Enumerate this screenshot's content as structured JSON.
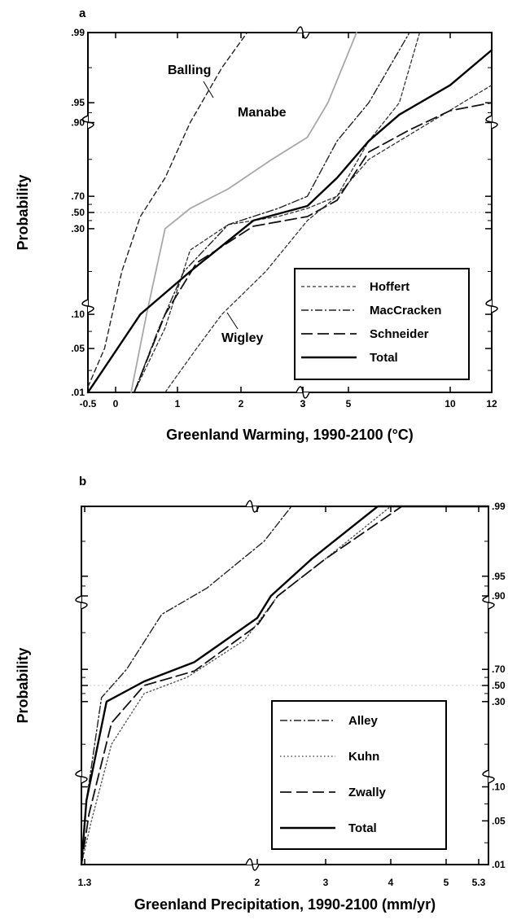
{
  "chart_data": [
    {
      "panel": "a",
      "type": "line",
      "title": "",
      "xlabel": "Greenland Warming, 1990-2100 (°C)",
      "ylabel": "Probability",
      "x_ticks": [
        "-0.5",
        "0",
        "1",
        "2",
        "3",
        "3",
        "5",
        "10",
        "12"
      ],
      "y_ticks": [
        ".01",
        ".05",
        ".10",
        ".30",
        ".50",
        ".70",
        ".90",
        ".95",
        ".99"
      ],
      "legend": {
        "placement": "bottom-right",
        "entries": [
          "Hoffert",
          "MacCracken",
          "Schneider",
          "Total"
        ]
      },
      "annotations": [
        "Balling",
        "Manabe",
        "Wigley"
      ],
      "series": [
        {
          "name": "Balling",
          "style": "dashed",
          "points": [
            [
              -0.5,
              0.015
            ],
            [
              -0.2,
              0.05
            ],
            [
              0.1,
              0.2
            ],
            [
              0.4,
              0.45
            ],
            [
              0.8,
              0.75
            ],
            [
              1.2,
              0.9
            ],
            [
              1.7,
              0.97
            ],
            [
              2.1,
              0.99
            ]
          ]
        },
        {
          "name": "Manabe",
          "style": "gray-solid",
          "points": [
            [
              0.25,
              0.01
            ],
            [
              0.5,
              0.1
            ],
            [
              0.8,
              0.3
            ],
            [
              1.2,
              0.55
            ],
            [
              1.8,
              0.72
            ],
            [
              2.5,
              0.8
            ],
            [
              3.2,
              0.86
            ],
            [
              4.1,
              0.95
            ],
            [
              5.4,
              0.99
            ]
          ]
        },
        {
          "name": "Hoffert",
          "style": "short-dashed",
          "points": [
            [
              0.3,
              0.01
            ],
            [
              0.8,
              0.08
            ],
            [
              1.2,
              0.25
            ],
            [
              1.8,
              0.35
            ],
            [
              2.6,
              0.45
            ],
            [
              3.2,
              0.55
            ],
            [
              4.5,
              0.7
            ],
            [
              6,
              0.8
            ],
            [
              9,
              0.9
            ],
            [
              12,
              0.96
            ]
          ]
        },
        {
          "name": "MacCracken",
          "style": "dash-dot",
          "points": [
            [
              0.3,
              0.01
            ],
            [
              0.7,
              0.08
            ],
            [
              1.1,
              0.2
            ],
            [
              1.8,
              0.35
            ],
            [
              2.6,
              0.55
            ],
            [
              3.2,
              0.7
            ],
            [
              4.5,
              0.85
            ],
            [
              6,
              0.95
            ],
            [
              8,
              0.99
            ]
          ]
        },
        {
          "name": "Schneider",
          "style": "long-dashed",
          "points": [
            [
              0.3,
              0.01
            ],
            [
              0.8,
              0.1
            ],
            [
              1.3,
              0.22
            ],
            [
              2.2,
              0.33
            ],
            [
              3.2,
              0.45
            ],
            [
              4.5,
              0.65
            ],
            [
              6,
              0.82
            ],
            [
              8,
              0.88
            ],
            [
              10,
              0.93
            ],
            [
              12,
              0.95
            ]
          ]
        },
        {
          "name": "Wigley",
          "style": "short-dashed",
          "points": [
            [
              0.8,
              0.01
            ],
            [
              1.3,
              0.05
            ],
            [
              1.7,
              0.1
            ],
            [
              2.4,
              0.2
            ],
            [
              3.2,
              0.4
            ],
            [
              4.5,
              0.7
            ],
            [
              6,
              0.85
            ],
            [
              7.5,
              0.95
            ],
            [
              8.5,
              0.99
            ]
          ]
        },
        {
          "name": "Total",
          "style": "solid-bold",
          "points": [
            [
              -0.5,
              0.01
            ],
            [
              -0.1,
              0.04
            ],
            [
              0.4,
              0.1
            ],
            [
              1.2,
              0.2
            ],
            [
              2.2,
              0.4
            ],
            [
              3.2,
              0.58
            ],
            [
              4.5,
              0.75
            ],
            [
              6,
              0.85
            ],
            [
              7.5,
              0.92
            ],
            [
              10,
              0.96
            ],
            [
              12,
              0.98
            ]
          ]
        }
      ]
    },
    {
      "panel": "b",
      "type": "line",
      "title": "",
      "xlabel": "Greenland Precipitation, 1990-2100 (mm/yr)",
      "ylabel": "Probability",
      "x_ticks": [
        "1.3",
        "2",
        "3",
        "4",
        "5",
        "5.3"
      ],
      "y_ticks": [
        ".01",
        ".05",
        ".10",
        ".30",
        ".50",
        ".70",
        ".90",
        ".95",
        ".99"
      ],
      "legend": {
        "placement": "bottom-right",
        "entries": [
          "Alley",
          "Kuhn",
          "Zwally",
          "Total"
        ]
      },
      "series": [
        {
          "name": "Alley",
          "style": "dash-dot",
          "points": [
            [
              1.3,
              0.01
            ],
            [
              1.32,
              0.08
            ],
            [
              1.38,
              0.35
            ],
            [
              1.48,
              0.7
            ],
            [
              1.62,
              0.85
            ],
            [
              1.8,
              0.92
            ],
            [
              2.1,
              0.97
            ],
            [
              2.5,
              0.99
            ]
          ]
        },
        {
          "name": "Kuhn",
          "style": "dotted",
          "points": [
            [
              1.3,
              0.01
            ],
            [
              1.34,
              0.05
            ],
            [
              1.42,
              0.2
            ],
            [
              1.55,
              0.4
            ],
            [
              1.72,
              0.6
            ],
            [
              1.95,
              0.78
            ],
            [
              2.3,
              0.9
            ],
            [
              3,
              0.96
            ],
            [
              4,
              0.99
            ]
          ]
        },
        {
          "name": "Zwally",
          "style": "long-dashed",
          "points": [
            [
              1.3,
              0.01
            ],
            [
              1.33,
              0.06
            ],
            [
              1.42,
              0.25
            ],
            [
              1.55,
              0.5
            ],
            [
              1.75,
              0.68
            ],
            [
              2,
              0.82
            ],
            [
              2.3,
              0.9
            ],
            [
              3,
              0.96
            ],
            [
              4.2,
              0.99
            ]
          ]
        },
        {
          "name": "Total",
          "style": "solid-bold",
          "points": [
            [
              1.3,
              0.01
            ],
            [
              1.32,
              0.08
            ],
            [
              1.4,
              0.3
            ],
            [
              1.55,
              0.55
            ],
            [
              1.75,
              0.72
            ],
            [
              2,
              0.84
            ],
            [
              2.2,
              0.9
            ],
            [
              2.8,
              0.96
            ],
            [
              3.8,
              0.99
            ],
            [
              5.3,
              0.995
            ]
          ]
        }
      ]
    }
  ]
}
